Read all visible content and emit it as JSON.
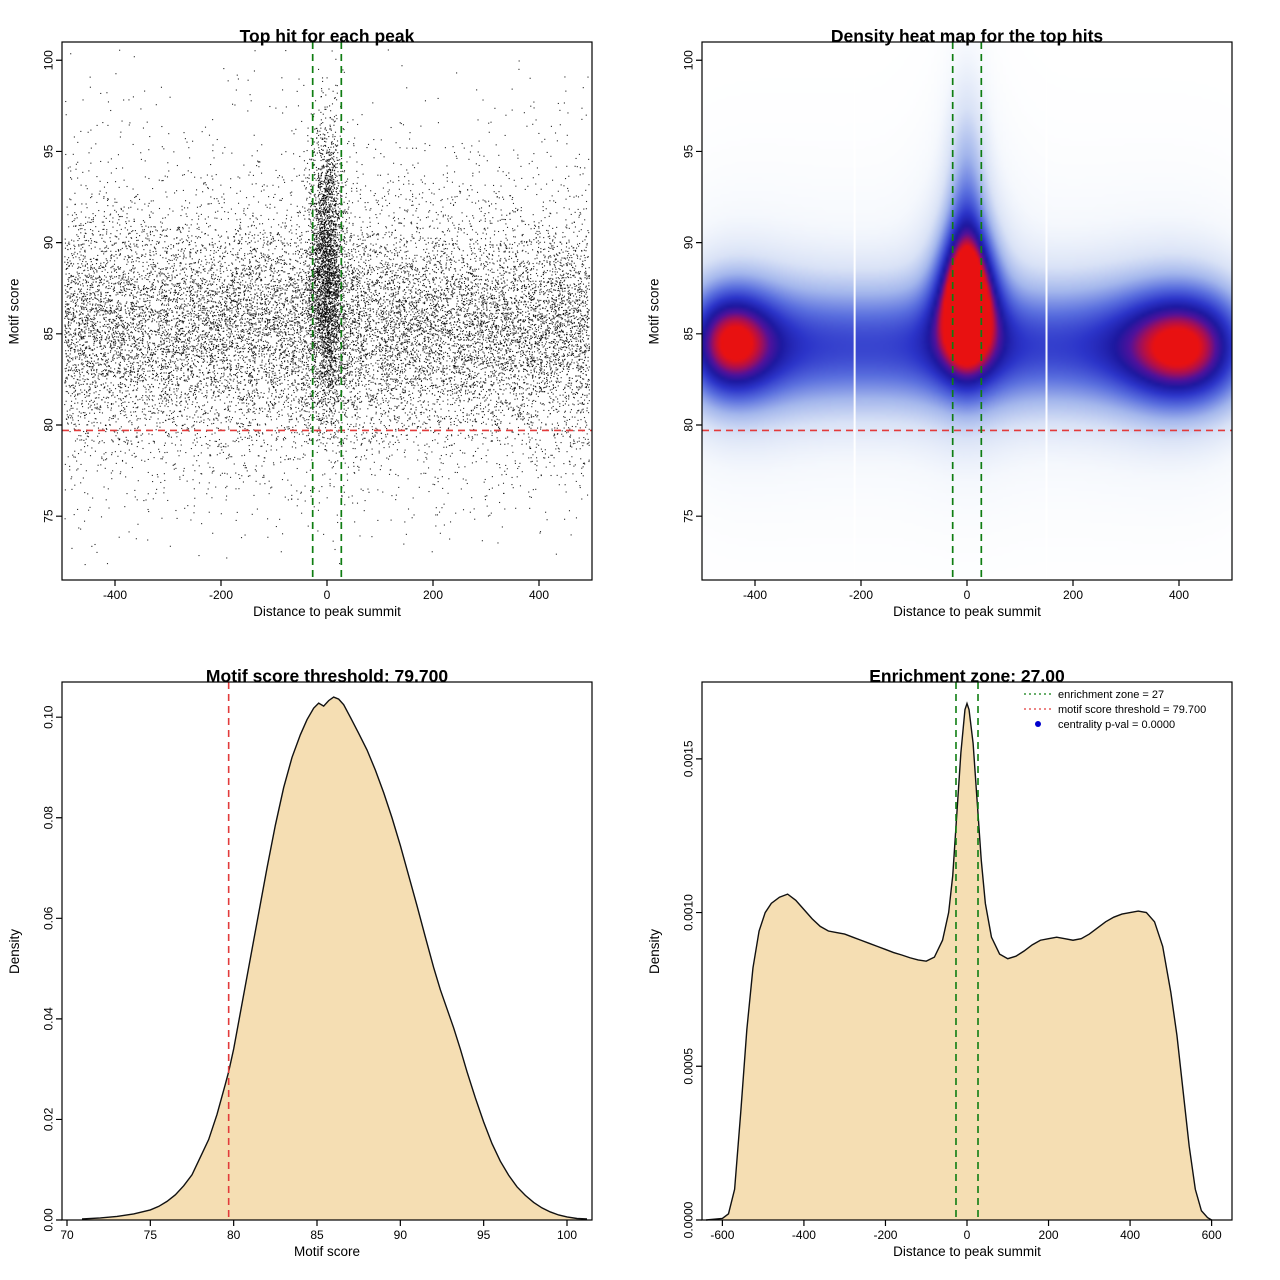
{
  "page": {
    "background": "#ffffff"
  },
  "chart_data": [
    {
      "type": "scatter",
      "title": "Top hit for each peak",
      "xlabel": "Distance to peak summit",
      "ylabel": "Motif score",
      "xlim": [
        -500,
        500
      ],
      "ylim": [
        71.5,
        101
      ],
      "xtick_values": [
        -400,
        -200,
        0,
        200,
        400
      ],
      "xtick_labels": [
        "-400",
        "-200",
        "0",
        "200",
        "400"
      ],
      "ytick_values": [
        75,
        80,
        85,
        90,
        95,
        100
      ],
      "ytick_labels": [
        "75",
        "80",
        "85",
        "90",
        "95",
        "100"
      ],
      "point_color": "#000000",
      "motif_score_threshold": 79.7,
      "enrichment_zone": [
        -27,
        27
      ],
      "threshold_color": "#e23b3b",
      "zone_color": "#0f7d12",
      "points_model": {
        "seed": 20240817,
        "background": {
          "n": 16000,
          "x_range": [
            -495,
            495
          ],
          "y_mixture": [
            {
              "weight": 0.78,
              "mean": 85.5,
              "sd": 2.9
            },
            {
              "weight": 0.12,
              "mean": 81.0,
              "sd": 3.3
            },
            {
              "weight": 0.1,
              "mean": 90.0,
              "sd": 4.6
            }
          ],
          "y_range": [
            71.8,
            100.8
          ]
        },
        "central": {
          "n": 3000,
          "x_mean": 0,
          "x_sd": 16,
          "x_range": [
            -60,
            60
          ],
          "y_mean": 88.5,
          "y_sd": 3.9,
          "y_range": [
            78.5,
            100.6
          ]
        }
      }
    },
    {
      "type": "heatmap",
      "title": "Density heat map for the top hits",
      "xlabel": "Distance to peak summit",
      "ylabel": "Motif score",
      "xlim": [
        -500,
        500
      ],
      "ylim": [
        71.5,
        101
      ],
      "xtick_values": [
        -400,
        -200,
        0,
        200,
        400
      ],
      "xtick_labels": [
        "-400",
        "-200",
        "0",
        "200",
        "400"
      ],
      "ytick_values": [
        75,
        80,
        85,
        90,
        95,
        100
      ],
      "ytick_labels": [
        "75",
        "80",
        "85",
        "90",
        "95",
        "100"
      ],
      "motif_score_threshold": 79.7,
      "enrichment_zone": [
        -27,
        27
      ],
      "threshold_color": "#e23b3b",
      "zone_color": "#0f7d12",
      "band": {
        "y": 84.3,
        "sy": 2.6,
        "a": 0.6,
        "edge": 540,
        "edge_soft": 40
      },
      "band2": {
        "y": 84.5,
        "sy": 5.5,
        "a": 0.2,
        "edge": 520,
        "edge_soft": 50
      },
      "blobs": [
        {
          "x": 0,
          "y": 87.2,
          "sx": 38,
          "sy": 2.6,
          "a": 0.85
        },
        {
          "x": 0,
          "y": 92.5,
          "sx": 28,
          "sy": 5.0,
          "a": 0.38
        },
        {
          "x": 0,
          "y": 88.0,
          "sx": 62,
          "sy": 6.0,
          "a": 0.22
        },
        {
          "x": -445,
          "y": 84.6,
          "sx": 55,
          "sy": 2.1,
          "a": 0.45
        },
        {
          "x": 405,
          "y": 84.2,
          "sx": 75,
          "sy": 2.3,
          "a": 0.42
        },
        {
          "x": -450,
          "y": 84.6,
          "sx": 90,
          "sy": 4.2,
          "a": 0.16
        },
        {
          "x": 405,
          "y": 84.3,
          "sx": 110,
          "sy": 4.2,
          "a": 0.15
        }
      ],
      "white_stripes_x": [
        -212,
        150
      ],
      "density_scale": 1.25,
      "colormap": [
        {
          "t": 0.0,
          "c": "#ffffff"
        },
        {
          "t": 0.1,
          "c": "#f5f8fd"
        },
        {
          "t": 0.25,
          "c": "#d9e2f6"
        },
        {
          "t": 0.4,
          "c": "#a3b6ec"
        },
        {
          "t": 0.55,
          "c": "#5a6fde"
        },
        {
          "t": 0.68,
          "c": "#2b34c9"
        },
        {
          "t": 0.78,
          "c": "#1c189f"
        },
        {
          "t": 0.86,
          "c": "#50119b"
        },
        {
          "t": 0.93,
          "c": "#a60f55"
        },
        {
          "t": 1.0,
          "c": "#e81111"
        }
      ]
    },
    {
      "type": "area",
      "title": "Motif score threshold: 79.700",
      "xlabel": "Motif score",
      "ylabel": "Density",
      "xlim": [
        69.7,
        101.5
      ],
      "ylim": [
        0,
        0.107
      ],
      "xtick_values": [
        70,
        75,
        80,
        85,
        90,
        95,
        100
      ],
      "xtick_labels": [
        "70",
        "75",
        "80",
        "85",
        "90",
        "95",
        "100"
      ],
      "ytick_values": [
        0,
        0.02,
        0.04,
        0.06,
        0.08,
        0.1
      ],
      "ytick_labels": [
        "0.00",
        "0.02",
        "0.04",
        "0.06",
        "0.08",
        "0.10"
      ],
      "fill_color": "#f5deb3",
      "line_color": "#111111",
      "vlines": [
        {
          "x": 79.7,
          "color": "#e23b3b"
        }
      ],
      "curve": {
        "x": [
          70.9,
          72,
          73,
          74,
          75,
          75.5,
          76,
          76.5,
          77,
          77.5,
          78,
          78.5,
          79,
          79.5,
          79.7,
          80,
          80.5,
          81,
          81.5,
          82,
          82.5,
          83,
          83.5,
          84,
          84.4,
          84.8,
          85.1,
          85.4,
          85.7,
          86,
          86.3,
          86.6,
          87,
          87.5,
          88,
          88.5,
          89,
          89.5,
          90,
          90.5,
          91,
          91.5,
          92,
          92.4,
          92.8,
          93.2,
          93.6,
          94,
          94.5,
          95,
          95.5,
          96,
          96.5,
          97,
          97.5,
          98,
          98.5,
          99,
          99.5,
          100,
          100.6,
          101.2
        ],
        "y": [
          0.0002,
          0.0004,
          0.0007,
          0.0012,
          0.002,
          0.0027,
          0.0037,
          0.005,
          0.0068,
          0.009,
          0.0125,
          0.016,
          0.021,
          0.027,
          0.0295,
          0.034,
          0.043,
          0.052,
          0.061,
          0.07,
          0.0785,
          0.086,
          0.092,
          0.0965,
          0.0995,
          0.1018,
          0.1028,
          0.1022,
          0.1033,
          0.104,
          0.1036,
          0.1025,
          0.1,
          0.0968,
          0.0935,
          0.0895,
          0.085,
          0.08,
          0.0745,
          0.0685,
          0.0625,
          0.0563,
          0.0502,
          0.0458,
          0.042,
          0.0382,
          0.034,
          0.0295,
          0.0243,
          0.0195,
          0.0152,
          0.0117,
          0.0089,
          0.0066,
          0.0049,
          0.0035,
          0.0024,
          0.0016,
          0.001,
          0.0006,
          0.0003,
          0.0002
        ]
      }
    },
    {
      "type": "area",
      "title": "Enrichment zone: 27.00",
      "xlabel": "Distance to peak summit",
      "ylabel": "Density",
      "xlim": [
        -650,
        650
      ],
      "ylim": [
        0,
        0.00175
      ],
      "xtick_values": [
        -600,
        -400,
        -200,
        0,
        200,
        400,
        600
      ],
      "xtick_labels": [
        "-600",
        "-400",
        "-200",
        "0",
        "200",
        "400",
        "600"
      ],
      "ytick_values": [
        0,
        0.0005,
        0.001,
        0.0015
      ],
      "ytick_labels": [
        "0.0000",
        "0.0005",
        "0.0010",
        "0.0015"
      ],
      "fill_color": "#f5deb3",
      "line_color": "#111111",
      "vlines": [
        {
          "x": -27,
          "color": "#0f7d12"
        },
        {
          "x": 27,
          "color": "#0f7d12"
        }
      ],
      "legend": [
        {
          "label": "enrichment zone = 27",
          "color": "#0f7d12",
          "marker": "dotted-line"
        },
        {
          "label": "motif score threshold = 79.700",
          "color": "#e23b3b",
          "marker": "dotted-line"
        },
        {
          "label": "centrality p-val = 0.0000",
          "color": "#0000cd",
          "marker": "dot"
        }
      ],
      "curve": {
        "x": [
          -640,
          -600,
          -585,
          -570,
          -555,
          -540,
          -525,
          -510,
          -495,
          -480,
          -460,
          -440,
          -420,
          -400,
          -380,
          -360,
          -340,
          -320,
          -300,
          -280,
          -260,
          -240,
          -220,
          -200,
          -180,
          -160,
          -140,
          -120,
          -100,
          -80,
          -60,
          -45,
          -35,
          -25,
          -15,
          -5,
          0,
          5,
          15,
          25,
          35,
          45,
          60,
          80,
          100,
          120,
          140,
          160,
          180,
          200,
          220,
          240,
          260,
          280,
          300,
          320,
          340,
          360,
          380,
          400,
          420,
          440,
          460,
          480,
          500,
          515,
          530,
          545,
          560,
          575,
          590,
          600,
          640
        ],
        "y": [
          0,
          5e-06,
          2e-05,
          0.0001,
          0.00035,
          0.00062,
          0.00082,
          0.00094,
          0.001,
          0.00103,
          0.00105,
          0.00106,
          0.00104,
          0.00101,
          0.00098,
          0.000955,
          0.00094,
          0.000935,
          0.00093,
          0.00092,
          0.00091,
          0.0009,
          0.00089,
          0.00088,
          0.00087,
          0.000862,
          0.000853,
          0.000846,
          0.000842,
          0.000855,
          0.00091,
          0.001,
          0.00112,
          0.00132,
          0.00152,
          0.00166,
          0.00168,
          0.00166,
          0.00155,
          0.00136,
          0.00117,
          0.00103,
          0.00092,
          0.000865,
          0.00085,
          0.000858,
          0.000875,
          0.000895,
          0.00091,
          0.000915,
          0.00092,
          0.000915,
          0.00091,
          0.000915,
          0.00093,
          0.00095,
          0.00097,
          0.000985,
          0.000995,
          0.001,
          0.001005,
          0.001,
          0.00097,
          0.00089,
          0.00074,
          0.0006,
          0.00042,
          0.00024,
          0.0001,
          3e-05,
          8e-06,
          0
        ]
      }
    }
  ]
}
